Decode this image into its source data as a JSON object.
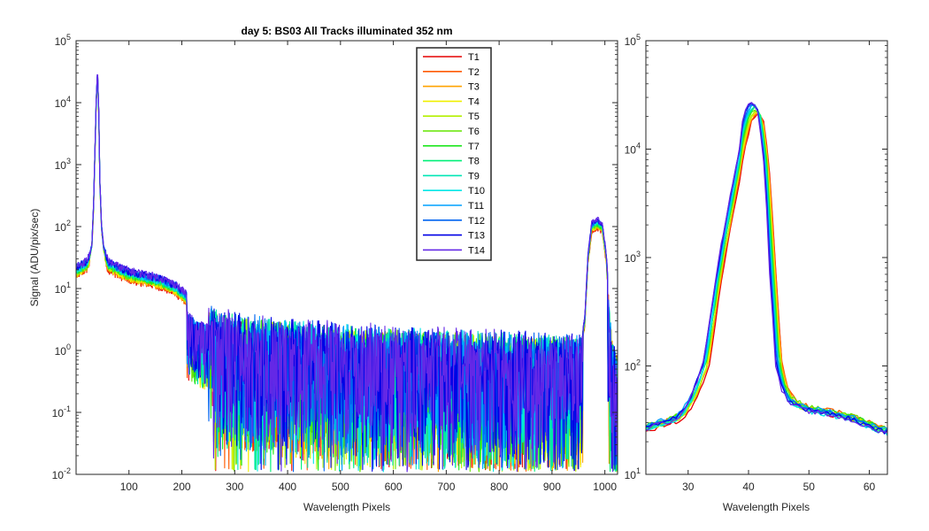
{
  "chart_data": [
    {
      "type": "line",
      "title": "day 5: BS03   All Tracks illuminated   352 nm",
      "xlabel": "Wavelength Pixels",
      "ylabel": "Signal (ADU/pix/sec)",
      "xlim": [
        0,
        1024
      ],
      "ylim": [
        0.01,
        100000
      ],
      "yscale": "log",
      "xticks": [
        100,
        200,
        300,
        400,
        500,
        600,
        700,
        800,
        900,
        1000
      ],
      "xtick_labels": [
        "100",
        "200",
        "300",
        "400",
        "500",
        "600",
        "700",
        "800",
        "900",
        "1000"
      ],
      "yticks": [
        0.01,
        0.1,
        1,
        10,
        100,
        1000,
        10000,
        100000
      ],
      "ytick_bases": [
        "10",
        "10",
        "10",
        "10",
        "10",
        "10",
        "10",
        "10"
      ],
      "ytick_exps": [
        "-2",
        "-1",
        "0",
        "1",
        "2",
        "3",
        "4",
        "5"
      ],
      "legend_position": "top-center",
      "series_names": [
        "T1",
        "T2",
        "T3",
        "T4",
        "T5",
        "T6",
        "T7",
        "T8",
        "T9",
        "T10",
        "T11",
        "T12",
        "T13",
        "T14"
      ],
      "series_colors": [
        "#e60000",
        "#ff5a00",
        "#ffa300",
        "#f0f000",
        "#b4f000",
        "#64e600",
        "#1ee61e",
        "#00f078",
        "#00e6b4",
        "#00e6e6",
        "#00a0ff",
        "#0064f0",
        "#0000e6",
        "#6428e6"
      ],
      "profile_x": [
        0,
        10,
        20,
        25,
        30,
        33,
        36,
        38,
        40,
        41,
        43,
        45,
        48,
        52,
        60,
        80,
        100,
        130,
        160,
        190,
        210,
        230,
        260,
        300,
        400,
        500,
        600,
        700,
        800,
        900,
        955,
        962,
        968,
        975,
        985,
        995,
        1003,
        1010,
        1018,
        1024
      ],
      "profile_y": [
        20,
        22,
        25,
        30,
        50,
        200,
        2000,
        10000,
        24000,
        24000,
        6000,
        500,
        100,
        45,
        25,
        20,
        17,
        15,
        13,
        10,
        7,
        5,
        4,
        3.2,
        2.5,
        2.2,
        2,
        1.8,
        1.6,
        1.5,
        1.4,
        3,
        30,
        100,
        115,
        100,
        30,
        3,
        1,
        0.8
      ]
    },
    {
      "type": "line",
      "title": "",
      "xlabel": "Wavelength Pixels",
      "ylabel": "",
      "xlim": [
        23,
        63
      ],
      "ylim": [
        10,
        100000
      ],
      "yscale": "log",
      "xticks": [
        30,
        40,
        50,
        60
      ],
      "xtick_labels": [
        "30",
        "40",
        "50",
        "60"
      ],
      "yticks": [
        10,
        100,
        1000,
        10000,
        100000
      ],
      "ytick_bases": [
        "10",
        "10",
        "10",
        "10",
        "10"
      ],
      "ytick_exps": [
        "1",
        "2",
        "3",
        "4",
        "5"
      ],
      "profile_x": [
        23,
        25,
        27,
        29,
        31,
        33,
        34,
        35,
        36,
        37,
        38,
        39,
        40,
        41,
        42,
        43,
        44,
        45,
        46,
        47,
        48,
        50,
        52,
        55,
        58,
        60,
        63
      ],
      "profile_y": [
        30,
        33,
        35,
        40,
        60,
        120,
        300,
        700,
        1500,
        3000,
        6000,
        12000,
        20000,
        24000,
        20000,
        7000,
        900,
        120,
        70,
        55,
        50,
        45,
        43,
        40,
        36,
        32,
        28
      ]
    }
  ]
}
